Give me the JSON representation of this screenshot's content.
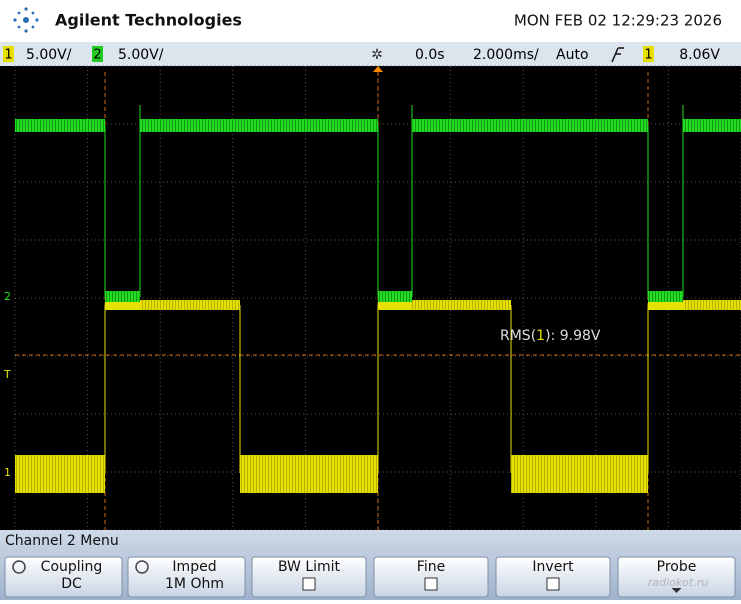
{
  "header": {
    "brand": "Agilent Technologies",
    "datetime": "MON FEB 02 12:29:23 2026"
  },
  "status": {
    "ch1_label": "1",
    "ch1_scale": "5.00V/",
    "ch2_label": "2",
    "ch2_scale": "5.00V/",
    "delay": "0.0s",
    "timebase": "2.000ms/",
    "mode": "Auto",
    "trig_source": "1",
    "trig_level": "8.06V"
  },
  "markers": {
    "ch2": "2",
    "trigger": "T",
    "ch1": "1"
  },
  "measurement": {
    "prefix": "RMS(",
    "source": "1",
    "suffix": "): 9.98V"
  },
  "menu": {
    "title": "Channel 2  Menu",
    "buttons": [
      {
        "label": "Coupling",
        "value": "DC"
      },
      {
        "label": "Imped",
        "value": "1M Ohm"
      },
      {
        "label": "BW Limit"
      },
      {
        "label": "Fine"
      },
      {
        "label": "Invert"
      },
      {
        "label": "Probe"
      }
    ]
  },
  "watermark": "radiokot.ru"
}
